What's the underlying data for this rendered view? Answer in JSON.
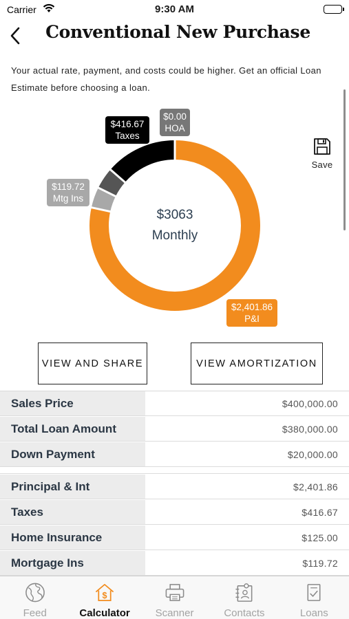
{
  "status_bar": {
    "carrier": "Carrier",
    "time": "9:30 AM"
  },
  "header": {
    "title": "Conventional New Purchase"
  },
  "disclaimer": "Your actual rate, payment, and costs could be higher. Get an official Loan Estimate before choosing a loan.",
  "chart": {
    "center_value": "$3063",
    "center_label": "Monthly",
    "segments": [
      {
        "name": "P&I",
        "amount": "$2,401.86",
        "value": 2401.86,
        "color": "#f28c1e"
      },
      {
        "name": "Mtg Ins",
        "amount": "$119.72",
        "value": 119.72,
        "color": "#a8a8a8"
      },
      {
        "name": "Home Insurance",
        "value": 125.0,
        "color": "#555555"
      },
      {
        "name": "Taxes",
        "amount": "$416.67",
        "value": 416.67,
        "color": "#000000"
      },
      {
        "name": "HOA",
        "amount": "$0.00",
        "value": 0,
        "color": "#777777"
      }
    ]
  },
  "save": {
    "label": "Save"
  },
  "buttons": {
    "view_share": "VIEW AND SHARE",
    "view_amortization": "VIEW AMORTIZATION"
  },
  "loan_table": [
    {
      "label": "Sales Price",
      "value": "$400,000.00"
    },
    {
      "label": "Total Loan Amount",
      "value": "$380,000.00"
    },
    {
      "label": "Down Payment",
      "value": "$20,000.00"
    }
  ],
  "payment_table": [
    {
      "label": "Principal & Int",
      "value": "$2,401.86"
    },
    {
      "label": "Taxes",
      "value": "$416.67"
    },
    {
      "label": "Home Insurance",
      "value": "$125.00"
    },
    {
      "label": "Mortgage Ins",
      "value": "$119.72"
    }
  ],
  "tabs": [
    {
      "label": "Feed",
      "icon": "globe-icon",
      "active": false
    },
    {
      "label": "Calculator",
      "icon": "house-dollar-icon",
      "active": true
    },
    {
      "label": "Scanner",
      "icon": "printer-icon",
      "active": false
    },
    {
      "label": "Contacts",
      "icon": "contact-card-icon",
      "active": false
    },
    {
      "label": "Loans",
      "icon": "document-check-icon",
      "active": false
    }
  ],
  "colors": {
    "accent": "#f28c1e",
    "tab_inactive": "#a3a3a3",
    "label_bg": "#ececec"
  }
}
